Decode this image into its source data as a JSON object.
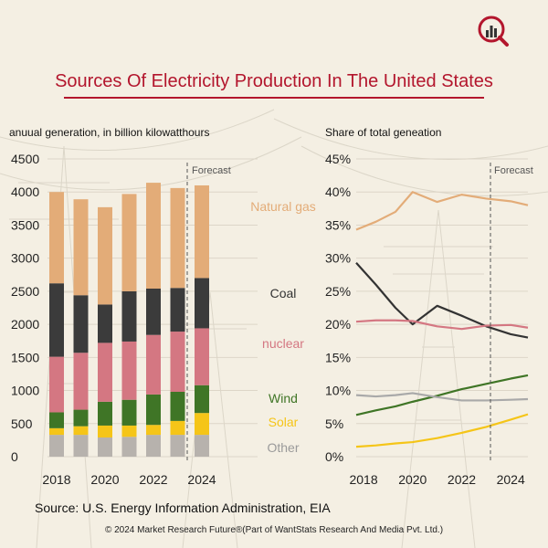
{
  "title": "Sources Of Electricity Production In The United States",
  "source": "Source: U.S. Energy Information Administration, EIA",
  "copyright": "© 2024 Market Research Future®(Part of WantStats Research And Media Pvt. Ltd.)",
  "chart_data": [
    {
      "type": "bar",
      "stacked": true,
      "subtitle": "anuual generation, in billion kilowatthours",
      "forecast_label": "Forecast",
      "categories": [
        "2018",
        "2019",
        "2020",
        "2021",
        "2022",
        "2023",
        "2024"
      ],
      "tick_labels": [
        "2018",
        "2020",
        "2022",
        "2024"
      ],
      "ylim": [
        0,
        4500
      ],
      "yticks": [
        0,
        500,
        1000,
        1500,
        2000,
        2500,
        3000,
        3500,
        4000,
        4500
      ],
      "series": [
        {
          "name": "Other",
          "color": "#b7b2ad",
          "values": [
            330,
            330,
            290,
            300,
            330,
            330,
            330
          ]
        },
        {
          "name": "Solar",
          "color": "#f5c518",
          "values": [
            100,
            130,
            180,
            170,
            150,
            210,
            330
          ]
        },
        {
          "name": "Wind",
          "color": "#3f7526",
          "values": [
            240,
            250,
            360,
            390,
            460,
            440,
            420
          ]
        },
        {
          "name": "nuclear",
          "color": "#d47782",
          "values": [
            840,
            860,
            890,
            880,
            900,
            910,
            860
          ]
        },
        {
          "name": "Coal",
          "color": "#3b3b3b",
          "values": [
            1110,
            870,
            580,
            760,
            700,
            660,
            760
          ]
        },
        {
          "name": "Natural gas",
          "color": "#e3ac78",
          "values": [
            1380,
            1450,
            1470,
            1470,
            1600,
            1510,
            1400
          ]
        }
      ]
    },
    {
      "type": "line",
      "subtitle": "Share of total geneation",
      "forecast_label": "Forecast",
      "x": [
        2017.7,
        2018.5,
        2019.3,
        2020,
        2021,
        2022,
        2023,
        2024,
        2024.7
      ],
      "tick_labels": [
        "2018",
        "2020",
        "2022",
        "2024"
      ],
      "ylim": [
        0,
        45
      ],
      "yticks": [
        "0%",
        "5%",
        "10%",
        "15%",
        "20%",
        "25%",
        "30%",
        "35%",
        "40%",
        "45%"
      ],
      "series": [
        {
          "name": "Natural gas",
          "color": "#e3ac78",
          "values": [
            34.3,
            35.5,
            37.0,
            40.0,
            38.5,
            39.6,
            39.0,
            38.6,
            38.0
          ]
        },
        {
          "name": "Coal",
          "color": "#333333",
          "values": [
            29.3,
            26.0,
            22.5,
            20.0,
            22.8,
            21.3,
            19.7,
            18.5,
            18.0
          ]
        },
        {
          "name": "nuclear",
          "color": "#d47782",
          "values": [
            20.4,
            20.6,
            20.6,
            20.5,
            19.7,
            19.3,
            19.8,
            19.9,
            19.5
          ]
        },
        {
          "name": "Wind",
          "color": "#3f7526",
          "values": [
            6.3,
            7.0,
            7.6,
            8.3,
            9.2,
            10.2,
            11.0,
            11.8,
            12.3
          ]
        },
        {
          "name": "Other",
          "color": "#a9a9a9",
          "values": [
            9.3,
            9.1,
            9.3,
            9.6,
            9.0,
            8.5,
            8.5,
            8.6,
            8.7
          ]
        },
        {
          "name": "Solar",
          "color": "#f5c518",
          "values": [
            1.5,
            1.7,
            2.0,
            2.2,
            2.8,
            3.6,
            4.5,
            5.6,
            6.4
          ]
        }
      ]
    }
  ],
  "legend_labels": [
    {
      "name": "Natural gas",
      "color": "#e3ac78"
    },
    {
      "name": "Coal",
      "color": "#333333"
    },
    {
      "name": "nuclear",
      "color": "#d47782"
    },
    {
      "name": "Wind",
      "color": "#3f7526"
    },
    {
      "name": "Solar",
      "color": "#f5c518"
    },
    {
      "name": "Other",
      "color": "#a9a9a9"
    }
  ]
}
